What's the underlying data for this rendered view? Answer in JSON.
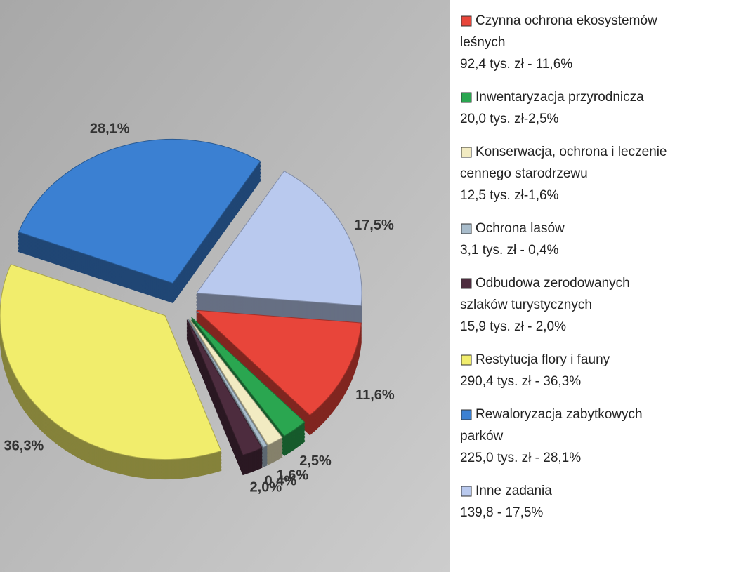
{
  "chart_data": {
    "type": "pie",
    "categories": [
      [
        "Czynna ochrona ekosystemów",
        "leśnych"
      ],
      [
        "Inwentaryzacja przyrodnicza"
      ],
      [
        "Konserwacja, ochrona i leczenie",
        "cennego starodrzewu"
      ],
      [
        "Ochrona lasów"
      ],
      [
        "Odbudowa zerodowanych",
        "szlaków  turystycznych"
      ],
      [
        "Restytucja flory i fauny"
      ],
      [
        "Rewaloryzacja zabytkowych",
        "parków"
      ],
      [
        "Inne zadania"
      ]
    ],
    "details": [
      "92,4 tys. zł - 11,6%",
      "20,0 tys. zł-2,5%",
      "12,5 tys. zł-1,6%",
      "3,1 tys. zł - 0,4%",
      "15,9 tys. zł - 2,0%",
      "290,4 tys. zł - 36,3%",
      "225,0 tys. zł - 28,1%",
      "139,8 - 17,5%"
    ],
    "values": [
      11.6,
      2.5,
      1.6,
      0.4,
      2.0,
      36.3,
      28.1,
      17.5
    ],
    "value_labels": [
      "11,6%",
      "2,5%",
      "1,6%",
      "0,4%",
      "2,0%",
      "36,3%",
      "28,1%",
      "17,5%"
    ],
    "colors": [
      "#e8453a",
      "#2aa650",
      "#f2ebc2",
      "#a8bccb",
      "#4d2c3e",
      "#f1ed6c",
      "#3b80d2",
      "#b9c9ee"
    ]
  }
}
